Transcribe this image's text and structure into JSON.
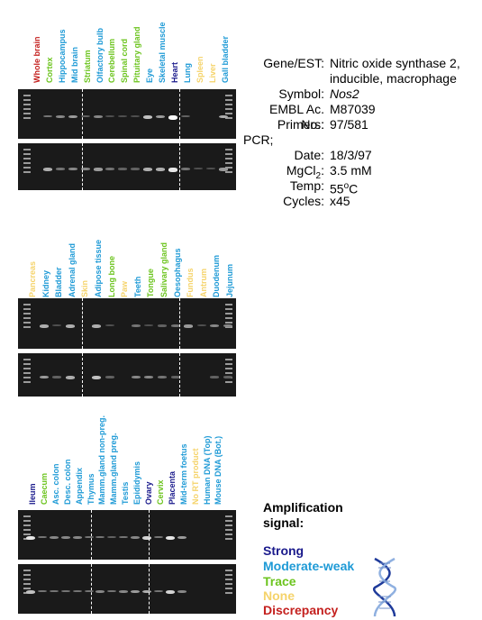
{
  "colors": {
    "strong": "#1a1a8c",
    "moderate": "#1e9ad6",
    "trace": "#6cc41e",
    "none": "#f5d36a",
    "discrepancy": "#c4201e"
  },
  "panels": [
    {
      "lanes": [
        {
          "label": "Whole brain",
          "class": "discrepancy"
        },
        {
          "label": "Cortex",
          "class": "trace"
        },
        {
          "label": "Hippocampus",
          "class": "moderate"
        },
        {
          "label": "Mid brain",
          "class": "moderate"
        },
        {
          "label": "Striatum",
          "class": "trace"
        },
        {
          "label": "Olfactory bulb",
          "class": "moderate"
        },
        {
          "label": "Cerebellum",
          "class": "trace"
        },
        {
          "label": "Spinal cord",
          "class": "trace"
        },
        {
          "label": "Pituitary gland",
          "class": "trace"
        },
        {
          "label": "Eye",
          "class": "moderate"
        },
        {
          "label": "Skeletal muscle",
          "class": "moderate"
        },
        {
          "label": "Heart",
          "class": "strong"
        },
        {
          "label": "Lung",
          "class": "moderate"
        },
        {
          "label": "Spleen",
          "class": "none"
        },
        {
          "label": "Liver",
          "class": "none"
        },
        {
          "label": "Gall bladder",
          "class": "moderate"
        }
      ],
      "bands_top": [
        0,
        0.3,
        0.4,
        0.5,
        0.2,
        0.4,
        0.1,
        0.1,
        0.1,
        0.7,
        0.5,
        1.0,
        0.2,
        0,
        0,
        0.6
      ],
      "bands_bottom": [
        0,
        0.6,
        0.3,
        0.4,
        0.4,
        0.5,
        0.3,
        0.2,
        0.2,
        0.6,
        0.6,
        0.9,
        0.3,
        0.1,
        0.1,
        0.5
      ]
    },
    {
      "lanes": [
        {
          "label": "Pancreas",
          "class": "none"
        },
        {
          "label": "Kidney",
          "class": "moderate"
        },
        {
          "label": "Bladder",
          "class": "moderate"
        },
        {
          "label": "Adrenal gland",
          "class": "moderate"
        },
        {
          "label": "Skin",
          "class": "none"
        },
        {
          "label": "Adipose tissue",
          "class": "moderate"
        },
        {
          "label": "Long bone",
          "class": "trace"
        },
        {
          "label": "Paw",
          "class": "none"
        },
        {
          "label": "Teeth",
          "class": "moderate"
        },
        {
          "label": "Tongue",
          "class": "trace"
        },
        {
          "label": "Salivary gland",
          "class": "trace"
        },
        {
          "label": "Oesophagus",
          "class": "moderate"
        },
        {
          "label": "Fundus",
          "class": "none"
        },
        {
          "label": "Antrum",
          "class": "none"
        },
        {
          "label": "Duodenum",
          "class": "moderate"
        },
        {
          "label": "Jejunum",
          "class": "moderate"
        }
      ],
      "bands_top": [
        0,
        0.6,
        0.1,
        0.6,
        0,
        0.6,
        0.1,
        0,
        0.3,
        0.1,
        0.2,
        0.3,
        0.5,
        0.1,
        0.4,
        0.4
      ],
      "bands_bottom": [
        0,
        0.5,
        0.2,
        0.6,
        0,
        0.7,
        0.2,
        0,
        0.4,
        0.4,
        0.3,
        0.2,
        0,
        0,
        0.2,
        0.2
      ]
    },
    {
      "lanes": [
        {
          "label": "Ileum",
          "class": "strong"
        },
        {
          "label": "Caecum",
          "class": "trace"
        },
        {
          "label": "Asc. colon",
          "class": "moderate"
        },
        {
          "label": "Desc. colon",
          "class": "moderate"
        },
        {
          "label": "Appendix",
          "class": "moderate"
        },
        {
          "label": "Thymus",
          "class": "moderate"
        },
        {
          "label": "Mamm.gland non-preg.",
          "class": "moderate"
        },
        {
          "label": "Mamm.gland preg.",
          "class": "moderate"
        },
        {
          "label": "Testis",
          "class": "moderate"
        },
        {
          "label": "Epididymis",
          "class": "moderate"
        },
        {
          "label": "Ovary",
          "class": "strong"
        },
        {
          "label": "Cervix",
          "class": "trace"
        },
        {
          "label": "Placenta",
          "class": "strong"
        },
        {
          "label": "Mid-term foetus",
          "class": "moderate"
        },
        {
          "label": "No RT product",
          "class": "none"
        },
        {
          "label": "Human DNA (Top)",
          "class": "moderate"
        },
        {
          "label": "Mouse DNA (Bot.)",
          "class": "moderate"
        }
      ],
      "bands_top": [
        0.9,
        0.3,
        0.4,
        0.4,
        0.4,
        0.3,
        0.3,
        0.2,
        0.3,
        0.4,
        0.8,
        0.3,
        0.9,
        0.5,
        0,
        0,
        0
      ],
      "bands_bottom": [
        0.7,
        0.3,
        0.3,
        0.3,
        0.3,
        0.3,
        0.4,
        0.3,
        0.4,
        0.5,
        0.6,
        0.3,
        0.8,
        0.4,
        0,
        0,
        0
      ]
    }
  ],
  "info": {
    "gene_key": "Gene/EST:",
    "gene_val1": "Nitric oxide synthase 2,",
    "gene_val2": "inducible, macrophage",
    "symbol_key": "Symbol:",
    "symbol_val": "Nos2",
    "embl_key": "EMBL Ac. No.:",
    "embl_val": "M87039",
    "primers_key": "Primers:",
    "primers_val": "97/581",
    "pcr_label": "PCR;",
    "date_key": "Date:",
    "date_val": "18/3/97",
    "mgcl_key_base": "MgCl",
    "mgcl_key_sub": "2",
    "mgcl_key_colon": ":",
    "mgcl_val": "3.5 mM",
    "temp_key": "Temp:",
    "temp_val_base": "55",
    "temp_val_sup": "o",
    "temp_val_unit": "C",
    "cycles_key": "Cycles:",
    "cycles_val": "x45"
  },
  "legend": {
    "title_line1": "Amplification",
    "title_line2": "signal:",
    "strong": "Strong",
    "moderate": "Moderate-weak",
    "trace": "Trace",
    "none": "None",
    "discrepancy": "Discrepancy"
  }
}
